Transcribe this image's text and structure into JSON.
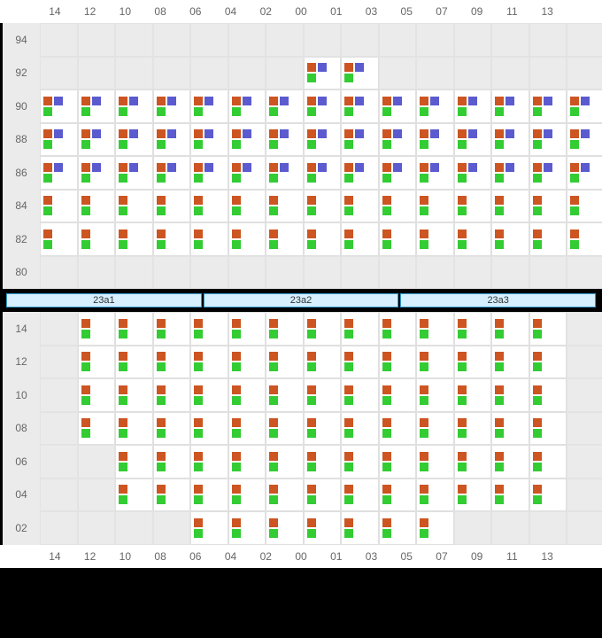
{
  "colors": {
    "orange": "#cc5522",
    "green": "#33cc33",
    "purple": "#5b5bcf",
    "cell_bg_filled": "#ffffff",
    "cell_bg_empty": "#ebebeb",
    "page_bg": "#000000",
    "stage_bg": "#d6f0ff",
    "stage_border": "#3399cc"
  },
  "columns_even": [
    "14",
    "12",
    "10",
    "08",
    "06",
    "04",
    "02",
    "00",
    "01",
    "03",
    "05",
    "07",
    "09",
    "11",
    "13"
  ],
  "columns_odd": [
    "14",
    "12",
    "10",
    "08",
    "06",
    "04",
    "02",
    "00",
    "01",
    "03",
    "05",
    "07",
    "09",
    "11",
    "13"
  ],
  "sectionA": {
    "name": "upper-block",
    "row_labels": [
      "94",
      "92",
      "90",
      "88",
      "86",
      "84",
      "82",
      "80"
    ],
    "cells": [
      [
        "E",
        "E",
        "E",
        "E",
        "E",
        "E",
        "E",
        "E",
        "E",
        "E",
        "E",
        "E",
        "E",
        "E",
        "E"
      ],
      [
        "E",
        "E",
        "E",
        "E",
        "E",
        "E",
        "E",
        "T",
        "T",
        "E",
        "E",
        "E",
        "E",
        "E",
        "E"
      ],
      [
        "T",
        "T",
        "T",
        "T",
        "T",
        "T",
        "T",
        "T",
        "T",
        "T",
        "T",
        "T",
        "T",
        "T",
        "T"
      ],
      [
        "T",
        "T",
        "T",
        "T",
        "T",
        "T",
        "T",
        "T",
        "T",
        "T",
        "T",
        "T",
        "T",
        "T",
        "T"
      ],
      [
        "T",
        "T",
        "T",
        "T",
        "T",
        "T",
        "T",
        "T",
        "T",
        "T",
        "T",
        "T",
        "T",
        "T",
        "T"
      ],
      [
        "D",
        "D",
        "D",
        "D",
        "D",
        "D",
        "D",
        "D",
        "D",
        "D",
        "D",
        "D",
        "D",
        "D",
        "D"
      ],
      [
        "D",
        "D",
        "D",
        "D",
        "D",
        "D",
        "D",
        "D",
        "D",
        "D",
        "D",
        "D",
        "D",
        "D",
        "D"
      ],
      [
        "E",
        "E",
        "E",
        "E",
        "E",
        "E",
        "E",
        "E",
        "E",
        "E",
        "E",
        "E",
        "E",
        "E",
        "E"
      ]
    ]
  },
  "stages": [
    "23a1",
    "23a2",
    "23a3"
  ],
  "sectionB": {
    "name": "lower-block",
    "row_labels": [
      "14",
      "12",
      "10",
      "08",
      "06",
      "04",
      "02"
    ],
    "cells": [
      [
        "E",
        "D",
        "D",
        "D",
        "D",
        "D",
        "D",
        "D",
        "D",
        "D",
        "D",
        "D",
        "D",
        "D",
        "E"
      ],
      [
        "E",
        "D",
        "D",
        "D",
        "D",
        "D",
        "D",
        "D",
        "D",
        "D",
        "D",
        "D",
        "D",
        "D",
        "E"
      ],
      [
        "E",
        "D",
        "D",
        "D",
        "D",
        "D",
        "D",
        "D",
        "D",
        "D",
        "D",
        "D",
        "D",
        "D",
        "E"
      ],
      [
        "E",
        "D",
        "D",
        "D",
        "D",
        "D",
        "D",
        "D",
        "D",
        "D",
        "D",
        "D",
        "D",
        "D",
        "E"
      ],
      [
        "E",
        "E",
        "D",
        "D",
        "D",
        "D",
        "D",
        "D",
        "D",
        "D",
        "D",
        "D",
        "D",
        "D",
        "E"
      ],
      [
        "E",
        "E",
        "D",
        "D",
        "D",
        "D",
        "D",
        "D",
        "D",
        "D",
        "D",
        "D",
        "D",
        "D",
        "E"
      ],
      [
        "E",
        "E",
        "E",
        "E",
        "D",
        "D",
        "D",
        "D",
        "D",
        "D",
        "D",
        "E",
        "E",
        "E",
        "E"
      ]
    ]
  }
}
